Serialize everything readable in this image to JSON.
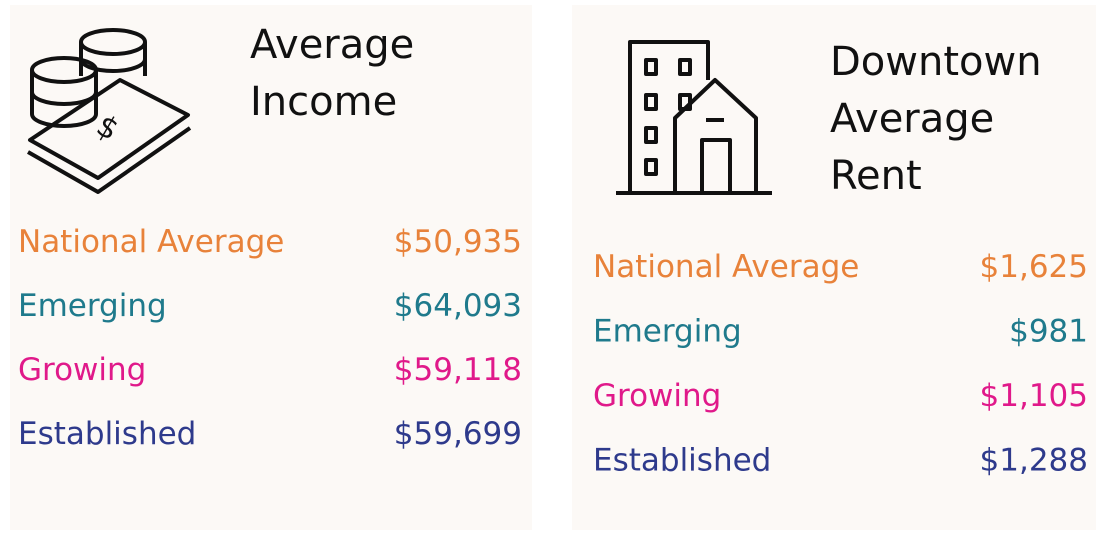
{
  "cards": [
    {
      "title": [
        "Average",
        "Income"
      ],
      "rows": [
        {
          "label": "National Average",
          "value": "$50,935",
          "color": "#e8823a"
        },
        {
          "label": "Emerging",
          "value": "$64,093",
          "color": "#1f7a8c"
        },
        {
          "label": "Growing",
          "value": "$59,118",
          "color": "#e0198a"
        },
        {
          "label": "Established",
          "value": "$59,699",
          "color": "#2e3a8c"
        }
      ]
    },
    {
      "title": [
        "Downtown",
        "Average",
        "Rent"
      ],
      "rows": [
        {
          "label": "National Average",
          "value": "$1,625",
          "color": "#e8823a"
        },
        {
          "label": "Emerging",
          "value": "$981",
          "color": "#1f7a8c"
        },
        {
          "label": "Growing",
          "value": "$1,105",
          "color": "#e0198a"
        },
        {
          "label": "Established",
          "value": "$1,288",
          "color": "#2e3a8c"
        }
      ]
    }
  ]
}
